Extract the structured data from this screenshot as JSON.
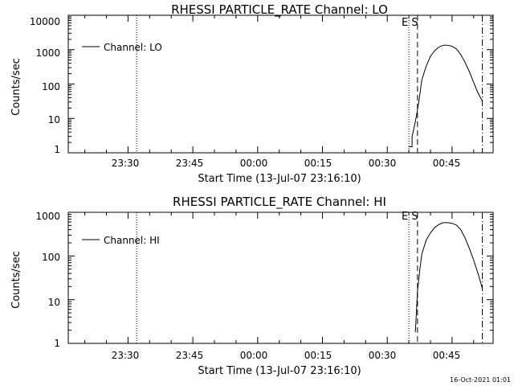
{
  "footer_timestamp": "16-Oct-2021 01:01",
  "chart_data": [
    {
      "type": "line",
      "title": "RHESSI PARTICLE_RATE Channel: LO",
      "xlabel": "Start Time (13-Jul-07 23:16:10)",
      "ylabel": "Counts/sec",
      "yscale": "log",
      "ylim": [
        1,
        10000
      ],
      "xlim": [
        "23:16:10",
        "00:54:30"
      ],
      "x_tick_labels": [
        "23:30",
        "23:45",
        "00:00",
        "00:15",
        "00:30",
        "00:45"
      ],
      "y_tick_labels": [
        "1",
        "10",
        "100",
        "1000",
        "10000"
      ],
      "y_ticks": [
        1,
        10,
        100,
        1000,
        10000
      ],
      "legend": {
        "text": "Channel: LO",
        "position": "top-left"
      },
      "markers": {
        "dotted": [
          "23:32",
          "00:35"
        ],
        "dashed": "00:37",
        "dash_dot": "00:52",
        "label": "E S"
      },
      "series": [
        {
          "name": "Channel: LO",
          "x": [
            "00:35:00",
            "00:35:45",
            "00:35:45",
            "00:36:30",
            "00:37:00",
            "00:37:30",
            "00:38:00",
            "00:39:00",
            "00:40:00",
            "00:41:00",
            "00:42:00",
            "00:43:00",
            "00:44:00",
            "00:45:00",
            "00:46:00",
            "00:47:00",
            "00:48:00",
            "00:49:00",
            "00:50:00",
            "00:51:00",
            "00:52:00"
          ],
          "values": [
            1.5,
            1.5,
            3,
            8,
            18,
            45,
            130,
            330,
            640,
            950,
            1200,
            1350,
            1350,
            1250,
            1050,
            720,
            430,
            230,
            110,
            55,
            32
          ]
        }
      ]
    },
    {
      "type": "line",
      "title": "RHESSI PARTICLE_RATE Channel: HI",
      "xlabel": "Start Time (13-Jul-07 23:16:10)",
      "ylabel": "Counts/sec",
      "yscale": "log",
      "ylim": [
        1,
        1000
      ],
      "xlim": [
        "23:16:10",
        "00:54:30"
      ],
      "x_tick_labels": [
        "23:30",
        "23:45",
        "00:00",
        "00:15",
        "00:30",
        "00:45"
      ],
      "y_tick_labels": [
        "1",
        "10",
        "100",
        "1000"
      ],
      "y_ticks": [
        1,
        10,
        100,
        1000
      ],
      "legend": {
        "text": "Channel: HI",
        "position": "top-left"
      },
      "markers": {
        "dotted": [
          "23:32",
          "00:35"
        ],
        "dashed": "00:37",
        "dash_dot": "00:52",
        "label": "E S"
      },
      "series": [
        {
          "name": "Channel: HI",
          "x": [
            "00:36:30",
            "00:37:00",
            "00:37:30",
            "00:38:00",
            "00:39:00",
            "00:40:00",
            "00:41:00",
            "00:42:00",
            "00:43:00",
            "00:44:00",
            "00:45:00",
            "00:46:00",
            "00:47:00",
            "00:48:00",
            "00:49:00",
            "00:50:00",
            "00:51:00",
            "00:52:00"
          ],
          "values": [
            1.8,
            16,
            45,
            110,
            230,
            340,
            450,
            530,
            580,
            580,
            560,
            510,
            400,
            260,
            150,
            80,
            40,
            18
          ]
        }
      ]
    }
  ]
}
